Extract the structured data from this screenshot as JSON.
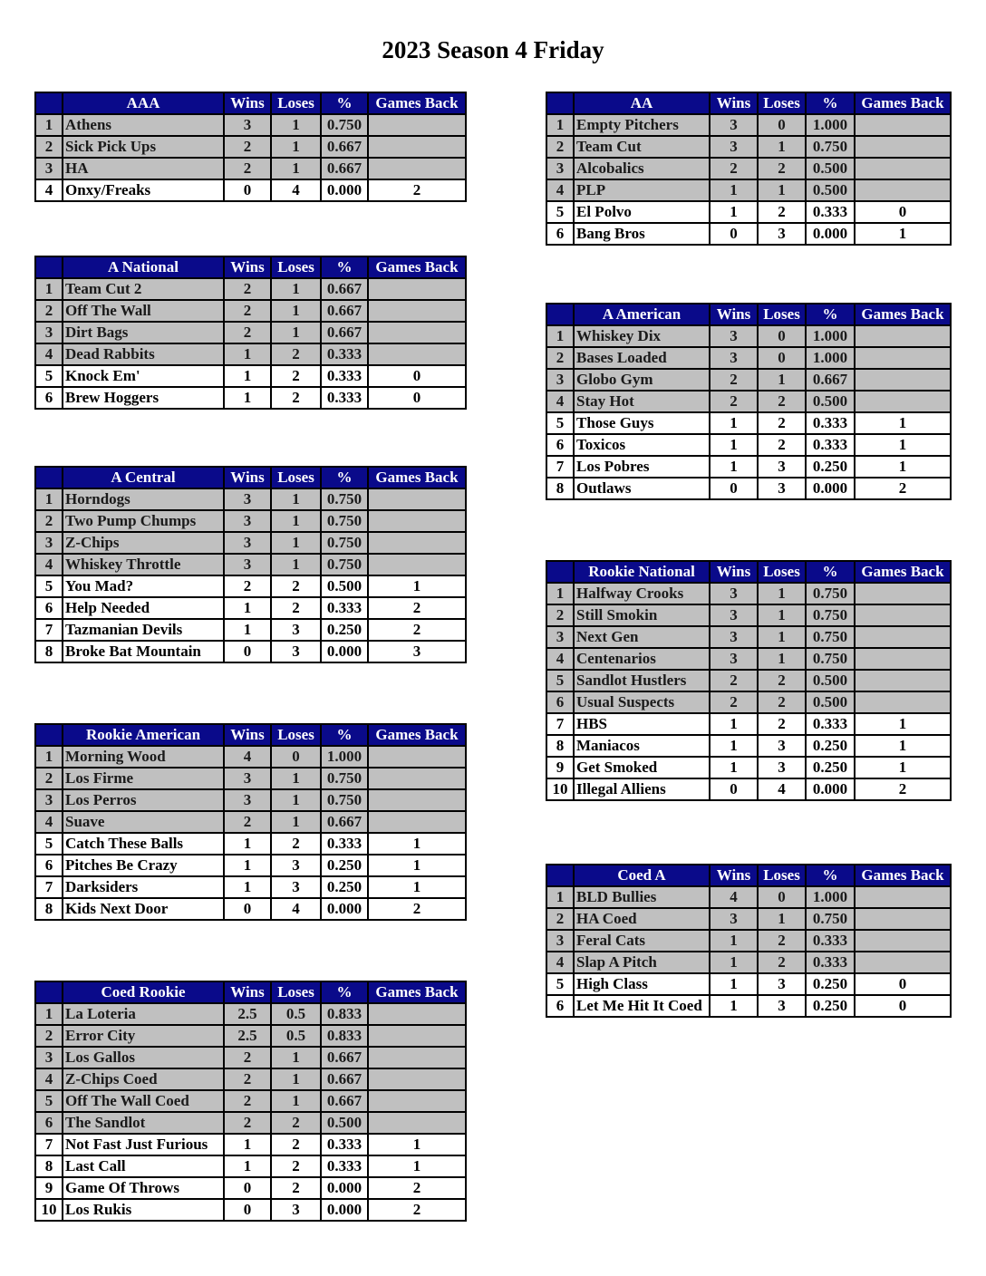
{
  "title": "2023 Season 4 Friday",
  "columns": {
    "wins": "Wins",
    "loses": "Loses",
    "pct": "%",
    "gb": "Games Back"
  },
  "colors": {
    "header_bg": "#0a0a8a",
    "leader_row_bg": "#c0c0c0",
    "other_row_bg": "#ffffff"
  },
  "divisions": [
    {
      "name": "AAA",
      "side": "left",
      "rows": [
        [
          "1",
          "Athens",
          "3",
          "1",
          "0.750",
          ""
        ],
        [
          "2",
          "Sick Pick Ups",
          "2",
          "1",
          "0.667",
          ""
        ],
        [
          "3",
          "HA",
          "2",
          "1",
          "0.667",
          ""
        ],
        [
          "4",
          "Onxy/Freaks",
          "0",
          "4",
          "0.000",
          "2"
        ]
      ]
    },
    {
      "name": "A National",
      "side": "left",
      "rows": [
        [
          "1",
          "Team Cut 2",
          "2",
          "1",
          "0.667",
          ""
        ],
        [
          "2",
          "Off The Wall",
          "2",
          "1",
          "0.667",
          ""
        ],
        [
          "3",
          "Dirt Bags",
          "2",
          "1",
          "0.667",
          ""
        ],
        [
          "4",
          "Dead Rabbits",
          "1",
          "2",
          "0.333",
          ""
        ],
        [
          "5",
          "Knock Em'",
          "1",
          "2",
          "0.333",
          "0"
        ],
        [
          "6",
          "Brew Hoggers",
          "1",
          "2",
          "0.333",
          "0"
        ]
      ]
    },
    {
      "name": "A Central",
      "side": "left",
      "rows": [
        [
          "1",
          "Horndogs",
          "3",
          "1",
          "0.750",
          ""
        ],
        [
          "2",
          "Two Pump Chumps",
          "3",
          "1",
          "0.750",
          ""
        ],
        [
          "3",
          "Z-Chips",
          "3",
          "1",
          "0.750",
          ""
        ],
        [
          "4",
          "Whiskey Throttle",
          "3",
          "1",
          "0.750",
          ""
        ],
        [
          "5",
          "You Mad?",
          "2",
          "2",
          "0.500",
          "1"
        ],
        [
          "6",
          "Help Needed",
          "1",
          "2",
          "0.333",
          "2"
        ],
        [
          "7",
          "Tazmanian Devils",
          "1",
          "3",
          "0.250",
          "2"
        ],
        [
          "8",
          "Broke Bat Mountain",
          "0",
          "3",
          "0.000",
          "3"
        ]
      ]
    },
    {
      "name": "Rookie American",
      "side": "left",
      "rows": [
        [
          "1",
          "Morning Wood",
          "4",
          "0",
          "1.000",
          ""
        ],
        [
          "2",
          "Los Firme",
          "3",
          "1",
          "0.750",
          ""
        ],
        [
          "3",
          "Los Perros",
          "3",
          "1",
          "0.750",
          ""
        ],
        [
          "4",
          "Suave",
          "2",
          "1",
          "0.667",
          ""
        ],
        [
          "5",
          "Catch These Balls",
          "1",
          "2",
          "0.333",
          "1"
        ],
        [
          "6",
          "Pitches Be Crazy",
          "1",
          "3",
          "0.250",
          "1"
        ],
        [
          "7",
          "Darksiders",
          "1",
          "3",
          "0.250",
          "1"
        ],
        [
          "8",
          "Kids Next Door",
          "0",
          "4",
          "0.000",
          "2"
        ]
      ]
    },
    {
      "name": "Coed Rookie",
      "side": "left",
      "rows": [
        [
          "1",
          "La Loteria",
          "2.5",
          "0.5",
          "0.833",
          ""
        ],
        [
          "2",
          "Error City",
          "2.5",
          "0.5",
          "0.833",
          ""
        ],
        [
          "3",
          "Los Gallos",
          "2",
          "1",
          "0.667",
          ""
        ],
        [
          "4",
          "Z-Chips Coed",
          "2",
          "1",
          "0.667",
          ""
        ],
        [
          "5",
          "Off The Wall Coed",
          "2",
          "1",
          "0.667",
          ""
        ],
        [
          "6",
          "The Sandlot",
          "2",
          "2",
          "0.500",
          ""
        ],
        [
          "7",
          "Not Fast Just Furious",
          "1",
          "2",
          "0.333",
          "1"
        ],
        [
          "8",
          "Last Call",
          "1",
          "2",
          "0.333",
          "1"
        ],
        [
          "9",
          "Game Of Throws",
          "0",
          "2",
          "0.000",
          "2"
        ],
        [
          "10",
          "Los Rukis",
          "0",
          "3",
          "0.000",
          "2"
        ]
      ]
    },
    {
      "name": "AA",
      "side": "right",
      "rows": [
        [
          "1",
          "Empty Pitchers",
          "3",
          "0",
          "1.000",
          ""
        ],
        [
          "2",
          "Team Cut",
          "3",
          "1",
          "0.750",
          ""
        ],
        [
          "3",
          "Alcobalics",
          "2",
          "2",
          "0.500",
          ""
        ],
        [
          "4",
          "PLP",
          "1",
          "1",
          "0.500",
          ""
        ],
        [
          "5",
          "El Polvo",
          "1",
          "2",
          "0.333",
          "0"
        ],
        [
          "6",
          "Bang Bros",
          "0",
          "3",
          "0.000",
          "1"
        ]
      ]
    },
    {
      "name": "A American",
      "side": "right",
      "rows": [
        [
          "1",
          "Whiskey Dix",
          "3",
          "0",
          "1.000",
          ""
        ],
        [
          "2",
          "Bases Loaded",
          "3",
          "0",
          "1.000",
          ""
        ],
        [
          "3",
          "Globo Gym",
          "2",
          "1",
          "0.667",
          ""
        ],
        [
          "4",
          "Stay Hot",
          "2",
          "2",
          "0.500",
          ""
        ],
        [
          "5",
          "Those Guys",
          "1",
          "2",
          "0.333",
          "1"
        ],
        [
          "6",
          "Toxicos",
          "1",
          "2",
          "0.333",
          "1"
        ],
        [
          "7",
          "Los Pobres",
          "1",
          "3",
          "0.250",
          "1"
        ],
        [
          "8",
          "Outlaws",
          "0",
          "3",
          "0.000",
          "2"
        ]
      ]
    },
    {
      "name": "Rookie National",
      "side": "right",
      "rows": [
        [
          "1",
          "Halfway Crooks",
          "3",
          "1",
          "0.750",
          ""
        ],
        [
          "2",
          "Still Smokin",
          "3",
          "1",
          "0.750",
          ""
        ],
        [
          "3",
          "Next Gen",
          "3",
          "1",
          "0.750",
          ""
        ],
        [
          "4",
          "Centenarios",
          "3",
          "1",
          "0.750",
          ""
        ],
        [
          "5",
          "Sandlot Hustlers",
          "2",
          "2",
          "0.500",
          ""
        ],
        [
          "6",
          "Usual Suspects",
          "2",
          "2",
          "0.500",
          ""
        ],
        [
          "7",
          "HBS",
          "1",
          "2",
          "0.333",
          "1"
        ],
        [
          "8",
          "Maniacos",
          "1",
          "3",
          "0.250",
          "1"
        ],
        [
          "9",
          "Get Smoked",
          "1",
          "3",
          "0.250",
          "1"
        ],
        [
          "10",
          "Illegal Alliens",
          "0",
          "4",
          "0.000",
          "2"
        ]
      ]
    },
    {
      "name": "Coed A",
      "side": "right",
      "rows": [
        [
          "1",
          "BLD Bullies",
          "4",
          "0",
          "1.000",
          ""
        ],
        [
          "2",
          "HA Coed",
          "3",
          "1",
          "0.750",
          ""
        ],
        [
          "3",
          "Feral Cats",
          "1",
          "2",
          "0.333",
          ""
        ],
        [
          "4",
          "Slap A Pitch",
          "1",
          "2",
          "0.333",
          ""
        ],
        [
          "5",
          "High Class",
          "1",
          "3",
          "0.250",
          "0"
        ],
        [
          "6",
          "Let Me Hit It Coed",
          "1",
          "3",
          "0.250",
          "0"
        ]
      ]
    }
  ]
}
